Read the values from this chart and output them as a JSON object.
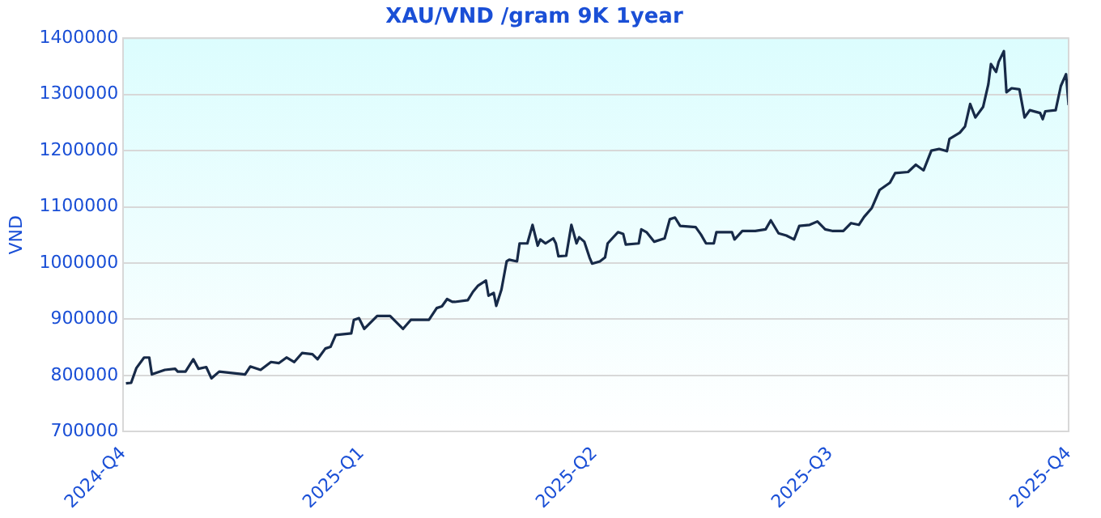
{
  "chart_data": {
    "type": "line",
    "title": "XAU/VND /gram 9K 1year",
    "ylabel": "VND",
    "xlim": [
      "2024-10-01",
      "2025-10-01"
    ],
    "xticks": [
      {
        "value": "2024-10-01",
        "label": "2024-Q4"
      },
      {
        "value": "2025-01-01",
        "label": "2025-Q1"
      },
      {
        "value": "2025-04-01",
        "label": "2025-Q2"
      },
      {
        "value": "2025-07-01",
        "label": "2025-Q3"
      },
      {
        "value": "2025-10-01",
        "label": "2025-Q4"
      }
    ],
    "ylim": [
      700000,
      1400000
    ],
    "yticks": [
      700000,
      800000,
      900000,
      1000000,
      1100000,
      1200000,
      1300000,
      1400000
    ],
    "grid": "y",
    "legend": false,
    "marker": "none",
    "line_style": "solid",
    "series": [
      {
        "color": "#172a48",
        "x": [
          "2024-10-02",
          "2024-10-04",
          "2024-10-06",
          "2024-10-09",
          "2024-10-11",
          "2024-10-12",
          "2024-10-17",
          "2024-10-21",
          "2024-10-22",
          "2024-10-25",
          "2024-10-28",
          "2024-10-30",
          "2024-11-02",
          "2024-11-04",
          "2024-11-07",
          "2024-11-17",
          "2024-11-19",
          "2024-11-23",
          "2024-11-27",
          "2024-11-30",
          "2024-12-03",
          "2024-12-06",
          "2024-12-09",
          "2024-12-13",
          "2024-12-15",
          "2024-12-18",
          "2024-12-20",
          "2024-12-22",
          "2024-12-28",
          "2024-12-29",
          "2024-12-31",
          "2025-01-02",
          "2025-01-07",
          "2025-01-12",
          "2025-01-17",
          "2025-01-20",
          "2025-01-27",
          "2025-01-30",
          "2025-02-01",
          "2025-02-03",
          "2025-02-05",
          "2025-02-06",
          "2025-02-11",
          "2025-02-13",
          "2025-02-15",
          "2025-02-18",
          "2025-02-19",
          "2025-02-21",
          "2025-02-22",
          "2025-02-24",
          "2025-02-26",
          "2025-02-27",
          "2025-03-02",
          "2025-03-03",
          "2025-03-06",
          "2025-03-08",
          "2025-03-10",
          "2025-03-11",
          "2025-03-13",
          "2025-03-16",
          "2025-03-17",
          "2025-03-18",
          "2025-03-21",
          "2025-03-23",
          "2025-03-25",
          "2025-03-26",
          "2025-03-28",
          "2025-03-30",
          "2025-03-31",
          "2025-04-03",
          "2025-04-05",
          "2025-04-06",
          "2025-04-10",
          "2025-04-12",
          "2025-04-13",
          "2025-04-18",
          "2025-04-19",
          "2025-04-21",
          "2025-04-24",
          "2025-04-28",
          "2025-04-30",
          "2025-05-02",
          "2025-05-04",
          "2025-05-10",
          "2025-05-12",
          "2025-05-14",
          "2025-05-17",
          "2025-05-18",
          "2025-05-24",
          "2025-05-25",
          "2025-05-28",
          "2025-06-02",
          "2025-06-06",
          "2025-06-08",
          "2025-06-11",
          "2025-06-14",
          "2025-06-17",
          "2025-06-19",
          "2025-06-23",
          "2025-06-26",
          "2025-06-29",
          "2025-07-02",
          "2025-07-06",
          "2025-07-09",
          "2025-07-12",
          "2025-07-14",
          "2025-07-17",
          "2025-07-20",
          "2025-07-24",
          "2025-07-26",
          "2025-07-31",
          "2025-08-03",
          "2025-08-06",
          "2025-08-09",
          "2025-08-12",
          "2025-08-15",
          "2025-08-16",
          "2025-08-20",
          "2025-08-22",
          "2025-08-24",
          "2025-08-26",
          "2025-08-29",
          "2025-08-31",
          "2025-09-01",
          "2025-09-03",
          "2025-09-04",
          "2025-09-06",
          "2025-09-07",
          "2025-09-09",
          "2025-09-12",
          "2025-09-14",
          "2025-09-16",
          "2025-09-20",
          "2025-09-21",
          "2025-09-22",
          "2025-09-26",
          "2025-09-28",
          "2025-09-30",
          "2025-10-01"
        ],
        "values": [
          786000,
          787000,
          813000,
          832000,
          832000,
          802000,
          810000,
          812000,
          807000,
          807000,
          829000,
          812000,
          815000,
          795000,
          807000,
          802000,
          816000,
          810000,
          824000,
          822000,
          832000,
          824000,
          840000,
          838000,
          829000,
          848000,
          851000,
          872000,
          875000,
          899000,
          902000,
          883000,
          906000,
          906000,
          883000,
          899000,
          899000,
          920000,
          923000,
          936000,
          931000,
          931000,
          934000,
          949000,
          960000,
          969000,
          942000,
          947000,
          924000,
          953000,
          1003000,
          1006000,
          1003000,
          1035000,
          1035000,
          1068000,
          1031000,
          1042000,
          1035000,
          1044000,
          1035000,
          1012000,
          1013000,
          1068000,
          1035000,
          1046000,
          1038000,
          1010000,
          999000,
          1003000,
          1010000,
          1035000,
          1055000,
          1052000,
          1033000,
          1035000,
          1060000,
          1055000,
          1038000,
          1044000,
          1078000,
          1081000,
          1066000,
          1064000,
          1051000,
          1035000,
          1035000,
          1055000,
          1055000,
          1042000,
          1057000,
          1057000,
          1060000,
          1076000,
          1053000,
          1049000,
          1042000,
          1066000,
          1068000,
          1074000,
          1060000,
          1057000,
          1057000,
          1071000,
          1068000,
          1082000,
          1098000,
          1130000,
          1143000,
          1160000,
          1162000,
          1175000,
          1165000,
          1200000,
          1203000,
          1199000,
          1221000,
          1232000,
          1243000,
          1283000,
          1259000,
          1278000,
          1318000,
          1354000,
          1340000,
          1358000,
          1377000,
          1304000,
          1311000,
          1309000,
          1259000,
          1272000,
          1267000,
          1256000,
          1270000,
          1272000,
          1315000,
          1336000,
          1281000
        ]
      }
    ]
  }
}
